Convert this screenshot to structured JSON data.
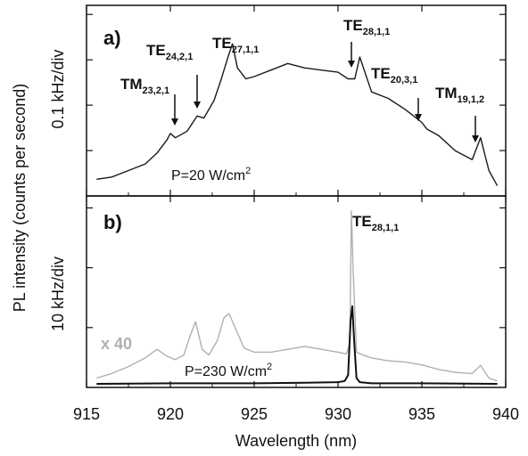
{
  "chart_data": [
    {
      "panel_label": "a",
      "type": "line",
      "xlabel": "Wavelength (nm)",
      "ylabel": "0.1 kHz/div",
      "shared_ylabel": "PL intensity (counts per second)",
      "xlim": [
        915,
        940
      ],
      "xticks": [
        "915",
        "920",
        "925",
        "930",
        "935",
        "940"
      ],
      "power_text": "P=20 W/cm",
      "power_sup": "2",
      "series": [
        {
          "color": "#1a1a1a",
          "x": [
            915.6,
            916.5,
            917.5,
            918.5,
            919.2,
            919.8,
            920.0,
            920.3,
            921.0,
            921.6,
            922.0,
            922.6,
            923.0,
            923.4,
            923.7,
            924.0,
            924.5,
            925.0,
            926.0,
            927.0,
            928.0,
            929.0,
            930.0,
            930.6,
            931.0,
            931.3,
            932.0,
            933.0,
            934.0,
            935.0,
            935.3,
            936.0,
            937.0,
            938.0,
            938.5,
            939.0,
            939.5
          ],
          "y": [
            0.3,
            0.35,
            0.5,
            0.65,
            0.9,
            1.2,
            1.35,
            1.25,
            1.4,
            1.75,
            1.7,
            2.1,
            2.55,
            3.05,
            3.4,
            2.85,
            2.6,
            2.65,
            2.8,
            2.95,
            2.85,
            2.8,
            2.75,
            2.6,
            2.6,
            3.1,
            2.3,
            2.15,
            1.9,
            1.6,
            1.45,
            1.3,
            0.95,
            0.75,
            1.25,
            0.5,
            0.15
          ]
        }
      ],
      "annotations": [
        {
          "label": "TM",
          "sub": "23,2,1",
          "x": 920.0
        },
        {
          "label": "TE",
          "sub": "24,2,1",
          "x": 921.6
        },
        {
          "label": "TE",
          "sub": "27,1,1",
          "x": 923.6
        },
        {
          "label": "TE",
          "sub": "28,1,1",
          "x": 930.9
        },
        {
          "label": "TE",
          "sub": "20,3,1",
          "x": 935.2
        },
        {
          "label": "TM",
          "sub": "19,1,2",
          "x": 938.6
        }
      ]
    },
    {
      "panel_label": "b",
      "type": "line",
      "xlabel": "Wavelength (nm)",
      "ylabel": "10 kHz/div",
      "xlim": [
        915,
        940
      ],
      "xticks": [
        "915",
        "920",
        "925",
        "930",
        "935",
        "940"
      ],
      "power_text": "P=230 W/cm",
      "power_sup": "2",
      "multiplier_label": "x 40",
      "peak_label": {
        "label": "TE",
        "sub": "28,1,1"
      },
      "series": [
        {
          "color": "#b0b0b0",
          "x": [
            915.6,
            916.5,
            917.5,
            918.5,
            919.2,
            919.8,
            920.3,
            920.8,
            921.2,
            921.5,
            921.9,
            922.3,
            922.8,
            923.2,
            923.5,
            923.9,
            924.4,
            925.0,
            926.0,
            927.0,
            928.0,
            929.0,
            930.0,
            930.5,
            930.7,
            930.8,
            930.9,
            931.1,
            931.5,
            932.0,
            933.0,
            934.0,
            935.0,
            936.0,
            937.0,
            938.0,
            938.5,
            939.0,
            939.5
          ],
          "y": [
            0.1,
            0.18,
            0.3,
            0.45,
            0.6,
            0.48,
            0.42,
            0.5,
            0.85,
            1.08,
            0.6,
            0.5,
            0.75,
            1.15,
            1.22,
            0.95,
            0.62,
            0.55,
            0.55,
            0.6,
            0.65,
            0.6,
            0.55,
            0.52,
            0.7,
            3.0,
            2.0,
            0.55,
            0.5,
            0.45,
            0.4,
            0.38,
            0.33,
            0.25,
            0.2,
            0.18,
            0.32,
            0.1,
            0.05
          ]
        },
        {
          "color": "#111111",
          "x": [
            915.6,
            920.0,
            925.0,
            928.0,
            930.0,
            930.4,
            930.6,
            930.75,
            930.85,
            930.95,
            931.1,
            931.3,
            932.0,
            935.0,
            939.5
          ],
          "y": [
            0.0,
            0.01,
            0.01,
            0.02,
            0.03,
            0.05,
            0.15,
            1.1,
            1.35,
            0.8,
            0.1,
            0.03,
            0.01,
            0.01,
            0.0
          ]
        }
      ]
    }
  ]
}
